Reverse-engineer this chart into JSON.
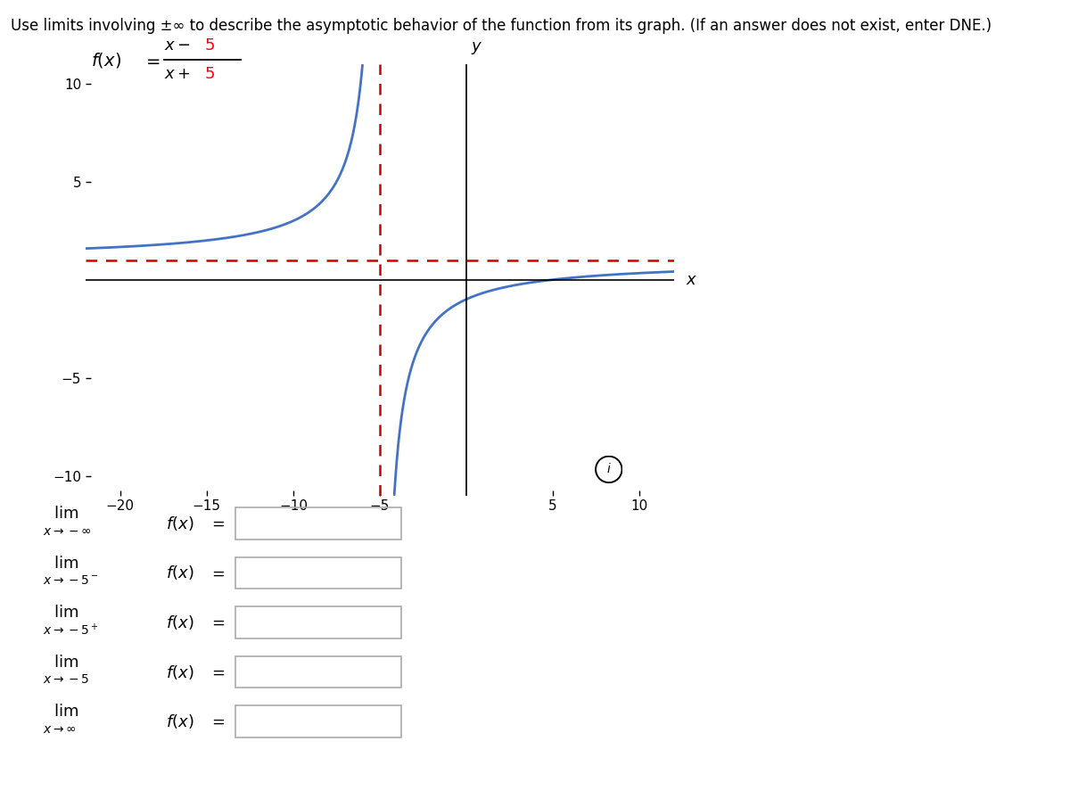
{
  "title": "Use limits involving ±∞ to describe the asymptotic behavior of the function from its graph. (If an answer does not exist, enter DNE.)",
  "xlim": [
    -22,
    12
  ],
  "ylim": [
    -11,
    11
  ],
  "xticks": [
    -20,
    -15,
    -10,
    -5,
    5,
    10
  ],
  "yticks": [
    -10,
    -5,
    5,
    10
  ],
  "asymptote_x": -5,
  "asymptote_y": 1,
  "curve_color": "#4472C4",
  "asymptote_color": "#CC0000",
  "background_color": "#FFFFFF"
}
